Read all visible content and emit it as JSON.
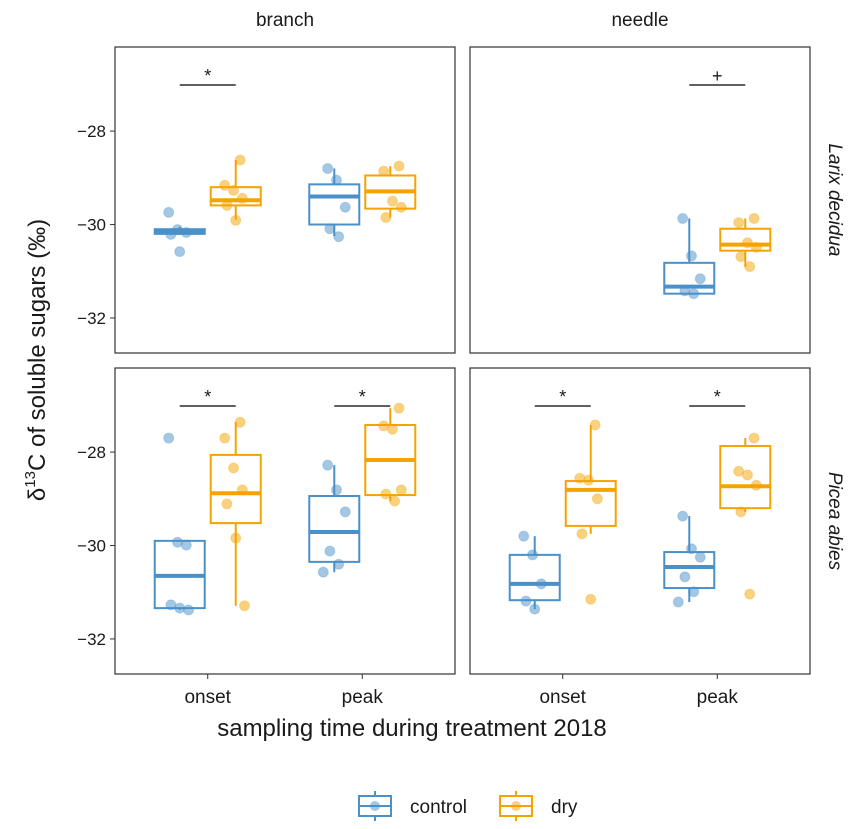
{
  "chart_data": {
    "type": "boxplot",
    "columns": [
      "branch",
      "needle"
    ],
    "rows": [
      "Larix decidua",
      "Picea abies"
    ],
    "categories": [
      "onset",
      "peak"
    ],
    "series": [
      {
        "name": "control",
        "color": "#4a90c9"
      },
      {
        "name": "dry",
        "color": "#f5a300"
      }
    ],
    "x_label": "sampling time during treatment 2018",
    "y_label": {
      "prefix": "δ",
      "superscript": "13",
      "text": "C of soluble sugars (‰)"
    },
    "ylim": [
      -32.75,
      -26.2
    ],
    "yticks": [
      {
        "value": -28,
        "label": "−28"
      },
      {
        "value": -30,
        "label": "−30"
      },
      {
        "value": -32,
        "label": "−32"
      }
    ],
    "panels": [
      [
        {
          "annotations": [
            "*",
            null
          ],
          "boxes": [
            [
              {
                "min": -30.22,
                "q1": -30.2,
                "median": -30.15,
                "q3": -30.1,
                "max": -30.05,
                "points": [
                  -29.74,
                  -30.11,
                  -30.17,
                  -30.21,
                  -30.58
                ]
              },
              {
                "min": -29.9,
                "q1": -29.59,
                "median": -29.48,
                "q3": -29.2,
                "max": -28.62,
                "points": [
                  -28.62,
                  -29.16,
                  -29.27,
                  -29.44,
                  -29.59,
                  -29.91
                ]
              }
            ],
            [
              {
                "min": -30.25,
                "q1": -30.0,
                "median": -29.4,
                "q3": -29.14,
                "max": -28.8,
                "points": [
                  -28.8,
                  -29.05,
                  -29.63,
                  -30.09,
                  -30.26
                ]
              },
              {
                "min": -29.85,
                "q1": -29.66,
                "median": -29.29,
                "q3": -28.95,
                "max": -28.75,
                "points": [
                  -28.75,
                  -28.86,
                  -29.5,
                  -29.63,
                  -29.85
                ]
              }
            ]
          ]
        },
        {
          "annotations": [
            null,
            "+"
          ],
          "boxes": [
            [
              null,
              null
            ],
            [
              {
                "min": -31.5,
                "q1": -31.48,
                "median": -31.33,
                "q3": -30.82,
                "max": -29.87,
                "points": [
                  -29.87,
                  -30.67,
                  -31.16,
                  -31.42,
                  -31.48
                ]
              },
              {
                "min": -30.9,
                "q1": -30.56,
                "median": -30.43,
                "q3": -30.09,
                "max": -29.87,
                "points": [
                  -29.87,
                  -29.96,
                  -30.39,
                  -30.49,
                  -30.69,
                  -30.9
                ]
              }
            ]
          ]
        }
      ],
      [
        {
          "annotations": [
            "*",
            "*"
          ],
          "boxes": [
            [
              {
                "min": -31.38,
                "q1": -31.34,
                "median": -30.65,
                "q3": -29.9,
                "max": -29.9,
                "points": [
                  -27.7,
                  -29.93,
                  -29.99,
                  -31.27,
                  -31.34,
                  -31.38
                ]
              },
              {
                "min": -31.29,
                "q1": -29.52,
                "median": -28.88,
                "q3": -28.06,
                "max": -27.36,
                "points": [
                  -27.36,
                  -27.7,
                  -28.34,
                  -28.81,
                  -29.11,
                  -29.84,
                  -31.29
                ]
              }
            ],
            [
              {
                "min": -30.57,
                "q1": -30.35,
                "median": -29.71,
                "q3": -28.94,
                "max": -28.28,
                "points": [
                  -28.28,
                  -28.81,
                  -29.28,
                  -30.12,
                  -30.4,
                  -30.57
                ]
              },
              {
                "min": -29.05,
                "q1": -28.92,
                "median": -28.17,
                "q3": -27.42,
                "max": -27.06,
                "points": [
                  -27.06,
                  -27.44,
                  -27.51,
                  -28.81,
                  -28.9,
                  -29.05
                ]
              }
            ]
          ]
        },
        {
          "annotations": [
            "*",
            "*"
          ],
          "boxes": [
            [
              {
                "min": -31.36,
                "q1": -31.17,
                "median": -30.82,
                "q3": -30.2,
                "max": -29.8,
                "points": [
                  -29.8,
                  -30.2,
                  -30.82,
                  -31.19,
                  -31.36
                ]
              },
              {
                "min": -29.75,
                "q1": -29.58,
                "median": -28.81,
                "q3": -28.62,
                "max": -27.42,
                "points": [
                  -27.42,
                  -28.56,
                  -28.6,
                  -29.0,
                  -29.75,
                  -31.15
                ]
              }
            ],
            [
              {
                "min": -31.21,
                "q1": -30.91,
                "median": -30.46,
                "q3": -30.14,
                "max": -29.37,
                "points": [
                  -29.37,
                  -30.07,
                  -30.25,
                  -30.67,
                  -30.99,
                  -31.21
                ]
              },
              {
                "min": -29.28,
                "q1": -29.2,
                "median": -28.73,
                "q3": -27.87,
                "max": -27.7,
                "points": [
                  -27.7,
                  -28.41,
                  -28.49,
                  -28.71,
                  -29.28,
                  -31.04
                ]
              }
            ]
          ]
        }
      ]
    ]
  }
}
